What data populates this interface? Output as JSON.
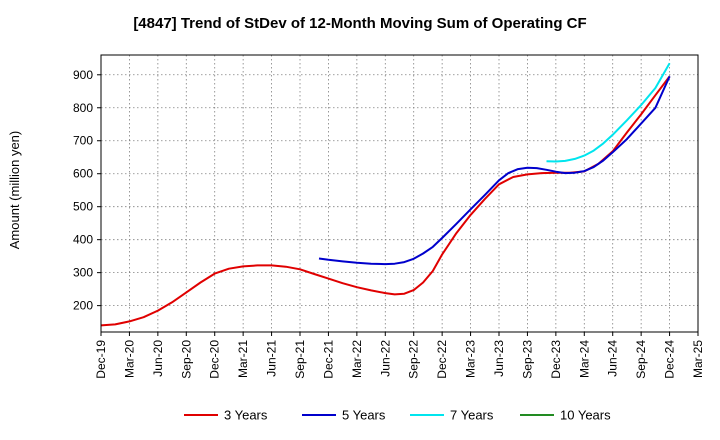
{
  "chart_data": {
    "type": "line",
    "title": "[4847]  Trend of StDev of 12-Month Moving Sum of Operating CF",
    "ylabel": "Amount (million yen)",
    "xlabel": "",
    "x_ticks": [
      "Dec-19",
      "Mar-20",
      "Jun-20",
      "Sep-20",
      "Dec-20",
      "Mar-21",
      "Jun-21",
      "Sep-21",
      "Dec-21",
      "Mar-22",
      "Jun-22",
      "Sep-22",
      "Dec-22",
      "Mar-23",
      "Jun-23",
      "Sep-23",
      "Dec-23",
      "Mar-24",
      "Jun-24",
      "Sep-24",
      "Dec-24",
      "Mar-25"
    ],
    "y_ticks": [
      200,
      300,
      400,
      500,
      600,
      700,
      800,
      900
    ],
    "ylim": [
      120,
      960
    ],
    "grid": true,
    "legend_position": "bottom",
    "series": [
      {
        "name": "3 Years",
        "color": "#e00000",
        "points": [
          [
            0,
            140
          ],
          [
            0.5,
            143
          ],
          [
            1,
            152
          ],
          [
            1.5,
            165
          ],
          [
            2,
            185
          ],
          [
            2.5,
            210
          ],
          [
            3,
            240
          ],
          [
            3.5,
            270
          ],
          [
            4,
            297
          ],
          [
            4.5,
            312
          ],
          [
            5,
            319
          ],
          [
            5.5,
            322
          ],
          [
            6,
            322
          ],
          [
            6.5,
            318
          ],
          [
            7,
            310
          ],
          [
            7.5,
            296
          ],
          [
            8,
            282
          ],
          [
            8.5,
            268
          ],
          [
            9,
            256
          ],
          [
            9.5,
            246
          ],
          [
            10,
            238
          ],
          [
            10.33,
            234
          ],
          [
            10.67,
            236
          ],
          [
            11,
            247
          ],
          [
            11.33,
            270
          ],
          [
            11.67,
            305
          ],
          [
            12,
            355
          ],
          [
            12.5,
            420
          ],
          [
            13,
            475
          ],
          [
            13.5,
            523
          ],
          [
            14,
            568
          ],
          [
            14.5,
            590
          ],
          [
            15,
            598
          ],
          [
            15.5,
            602
          ],
          [
            16,
            603
          ],
          [
            16.5,
            603
          ],
          [
            17,
            607
          ],
          [
            17.5,
            630
          ],
          [
            18,
            668
          ],
          [
            18.5,
            725
          ],
          [
            19,
            780
          ],
          [
            19.5,
            838
          ],
          [
            20,
            895
          ]
        ]
      },
      {
        "name": "5 Years",
        "color": "#0000cc",
        "points": [
          [
            7.67,
            343
          ],
          [
            8,
            339
          ],
          [
            8.5,
            334
          ],
          [
            9,
            330
          ],
          [
            9.5,
            327
          ],
          [
            10,
            326
          ],
          [
            10.33,
            327
          ],
          [
            10.67,
            332
          ],
          [
            11,
            342
          ],
          [
            11.33,
            358
          ],
          [
            11.67,
            378
          ],
          [
            12,
            405
          ],
          [
            12.5,
            448
          ],
          [
            13,
            492
          ],
          [
            13.5,
            535
          ],
          [
            14,
            580
          ],
          [
            14.33,
            602
          ],
          [
            14.67,
            614
          ],
          [
            15,
            618
          ],
          [
            15.33,
            617
          ],
          [
            15.67,
            612
          ],
          [
            16,
            606
          ],
          [
            16.33,
            602
          ],
          [
            16.67,
            603
          ],
          [
            17,
            608
          ],
          [
            17.33,
            620
          ],
          [
            17.67,
            640
          ],
          [
            18,
            665
          ],
          [
            18.5,
            705
          ],
          [
            19,
            752
          ],
          [
            19.5,
            800
          ],
          [
            20,
            895
          ]
        ]
      },
      {
        "name": "7 Years",
        "color": "#00e5ee",
        "points": [
          [
            15.67,
            638
          ],
          [
            16,
            637
          ],
          [
            16.33,
            639
          ],
          [
            16.67,
            645
          ],
          [
            17,
            655
          ],
          [
            17.33,
            670
          ],
          [
            17.67,
            692
          ],
          [
            18,
            718
          ],
          [
            18.5,
            762
          ],
          [
            19,
            808
          ],
          [
            19.5,
            860
          ],
          [
            20,
            935
          ]
        ]
      },
      {
        "name": "10 Years",
        "color": "#228b22",
        "points": []
      }
    ]
  }
}
